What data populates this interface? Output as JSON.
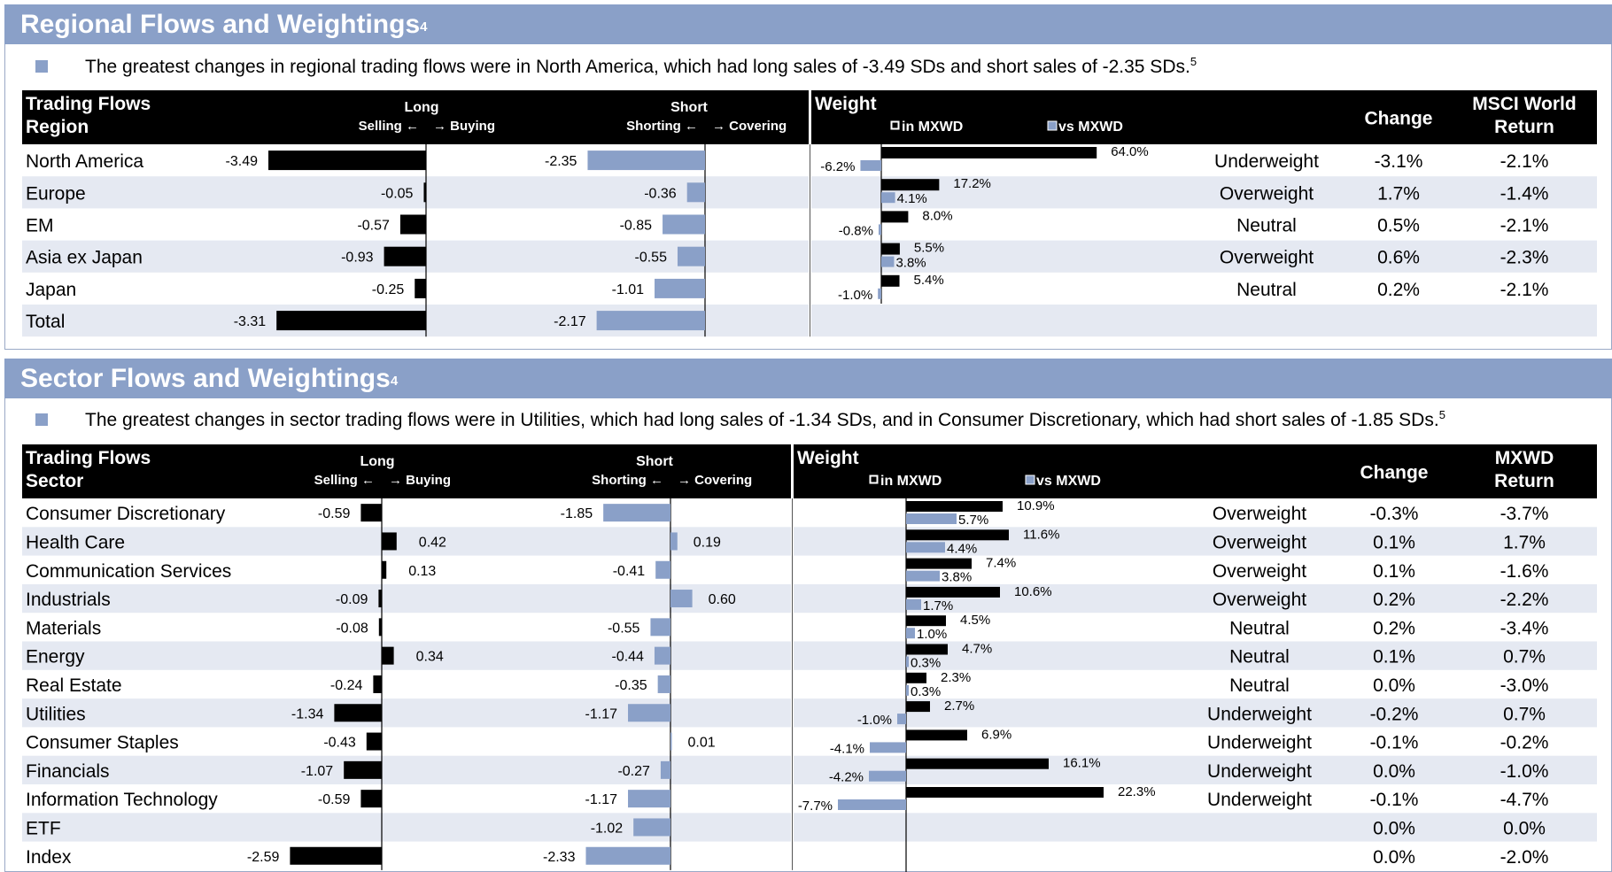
{
  "regional": {
    "title": "Regional Flows and Weightings",
    "title_sup": "4",
    "bullet": "The greatest changes in regional trading flows were in North America, which had long sales of -3.49 SDs and short sales of -2.35 SDs.",
    "bullet_sup": "5",
    "headers": {
      "trading_flows": "Trading Flows",
      "first_col": "Region",
      "long": "Long",
      "short": "Short",
      "selling": "Selling ←",
      "buying": "→ Buying",
      "shorting": "Shorting ←",
      "covering": "→ Covering",
      "weight": "Weight",
      "in_mxwd": "in MXWD",
      "vs_mxwd": "vs MXWD",
      "change": "Change",
      "ret_line1": "MSCI World",
      "ret_line2": "Return"
    },
    "colors": {
      "header_band": "#8aa0c8",
      "short_bar": "#8aa0c8",
      "long_bar": "#000000",
      "row_alt": "#e5e9f2"
    }
  },
  "sector": {
    "title": "Sector Flows and Weightings",
    "title_sup": "4",
    "bullet": "The greatest changes in sector trading flows were in Utilities, which had long sales of -1.34 SDs, and in Consumer Discretionary, which had short sales of -1.85 SDs.",
    "bullet_sup": "5",
    "headers": {
      "trading_flows": "Trading Flows",
      "first_col": "Sector",
      "long": "Long",
      "short": "Short",
      "selling": "Selling ←",
      "buying": "→ Buying",
      "shorting": "Shorting ←",
      "covering": "→ Covering",
      "weight": "Weight",
      "in_mxwd": "in MXWD",
      "vs_mxwd": "vs MXWD",
      "change": "Change",
      "ret_line1": "MXWD",
      "ret_line2": "Return"
    }
  },
  "chart_data": [
    {
      "type": "bar",
      "title": "Regional Flows and Weightings",
      "categories": [
        "North America",
        "Europe",
        "EM",
        "Asia ex Japan",
        "Japan",
        "Total"
      ],
      "series": [
        {
          "name": "Long",
          "values": [
            -3.49,
            -0.05,
            -0.57,
            -0.93,
            -0.25,
            -3.31
          ]
        },
        {
          "name": "Short",
          "values": [
            -2.35,
            -0.36,
            -0.85,
            -0.55,
            -1.01,
            -2.17
          ]
        },
        {
          "name": "in MXWD",
          "values": [
            64.0,
            17.2,
            8.0,
            5.5,
            5.4,
            null
          ]
        },
        {
          "name": "vs MXWD",
          "values": [
            -6.2,
            4.1,
            -0.8,
            3.8,
            -1.0,
            null
          ]
        }
      ],
      "weight": [
        "Underweight",
        "Overweight",
        "Neutral",
        "Overweight",
        "Neutral",
        ""
      ],
      "change": [
        "-3.1%",
        "1.7%",
        "0.5%",
        "0.6%",
        "0.2%",
        ""
      ],
      "return": [
        "-2.1%",
        "-1.4%",
        "-2.1%",
        "-2.3%",
        "-2.1%",
        ""
      ],
      "long_labels": [
        "-3.49",
        "-0.05",
        "-0.57",
        "-0.93",
        "-0.25",
        "-3.31"
      ],
      "short_labels": [
        "-2.35",
        "-0.36",
        "-0.85",
        "-0.55",
        "-1.01",
        "-2.17"
      ],
      "in_labels": [
        "64.0%",
        "17.2%",
        "8.0%",
        "5.5%",
        "5.4%",
        ""
      ],
      "vs_labels": [
        "-6.2%",
        "4.1%",
        "-0.8%",
        "3.8%",
        "-1.0%",
        ""
      ]
    },
    {
      "type": "bar",
      "title": "Sector Flows and Weightings",
      "categories": [
        "Consumer Discretionary",
        "Health Care",
        "Communication Services",
        "Industrials",
        "Materials",
        "Energy",
        "Real Estate",
        "Utilities",
        "Consumer Staples",
        "Financials",
        "Information Technology",
        "ETF",
        "Index"
      ],
      "series": [
        {
          "name": "Long",
          "values": [
            -0.59,
            0.42,
            0.13,
            -0.09,
            -0.08,
            0.34,
            -0.24,
            -1.34,
            -0.43,
            -1.07,
            -0.59,
            null,
            -2.59
          ]
        },
        {
          "name": "Short",
          "values": [
            -1.85,
            0.19,
            -0.41,
            0.6,
            -0.55,
            -0.44,
            -0.35,
            -1.17,
            0.01,
            -0.27,
            -1.17,
            -1.02,
            -2.33
          ]
        },
        {
          "name": "in MXWD",
          "values": [
            10.9,
            11.6,
            7.4,
            10.6,
            4.5,
            4.7,
            2.3,
            2.7,
            6.9,
            16.1,
            22.3,
            null,
            null
          ]
        },
        {
          "name": "vs MXWD",
          "values": [
            5.7,
            4.4,
            3.8,
            1.7,
            1.0,
            0.3,
            0.3,
            -1.0,
            -4.1,
            -4.2,
            -7.7,
            null,
            null
          ]
        }
      ],
      "weight": [
        "Overweight",
        "Overweight",
        "Overweight",
        "Overweight",
        "Neutral",
        "Neutral",
        "Neutral",
        "Underweight",
        "Underweight",
        "Underweight",
        "Underweight",
        "",
        ""
      ],
      "change": [
        "-0.3%",
        "0.1%",
        "0.1%",
        "0.2%",
        "0.2%",
        "0.1%",
        "0.0%",
        "-0.2%",
        "-0.1%",
        "0.0%",
        "-0.1%",
        "0.0%",
        "0.0%"
      ],
      "return": [
        "-3.7%",
        "1.7%",
        "-1.6%",
        "-2.2%",
        "-3.4%",
        "0.7%",
        "-3.0%",
        "0.7%",
        "-0.2%",
        "-1.0%",
        "-4.7%",
        "0.0%",
        "-2.0%"
      ],
      "long_labels": [
        "-0.59",
        "0.42",
        "0.13",
        "-0.09",
        "-0.08",
        "0.34",
        "-0.24",
        "-1.34",
        "-0.43",
        "-1.07",
        "-0.59",
        "",
        "-2.59"
      ],
      "short_labels": [
        "-1.85",
        "0.19",
        "-0.41",
        "0.60",
        "-0.55",
        "-0.44",
        "-0.35",
        "-1.17",
        "0.01",
        "-0.27",
        "-1.17",
        "-1.02",
        "-2.33"
      ],
      "in_labels": [
        "10.9%",
        "11.6%",
        "7.4%",
        "10.6%",
        "4.5%",
        "4.7%",
        "2.3%",
        "2.7%",
        "6.9%",
        "16.1%",
        "22.3%",
        "",
        ""
      ],
      "vs_labels": [
        "5.7%",
        "4.4%",
        "3.8%",
        "1.7%",
        "1.0%",
        "0.3%",
        "0.3%",
        "-1.0%",
        "-4.1%",
        "-4.2%",
        "-7.7%",
        "",
        ""
      ]
    }
  ]
}
